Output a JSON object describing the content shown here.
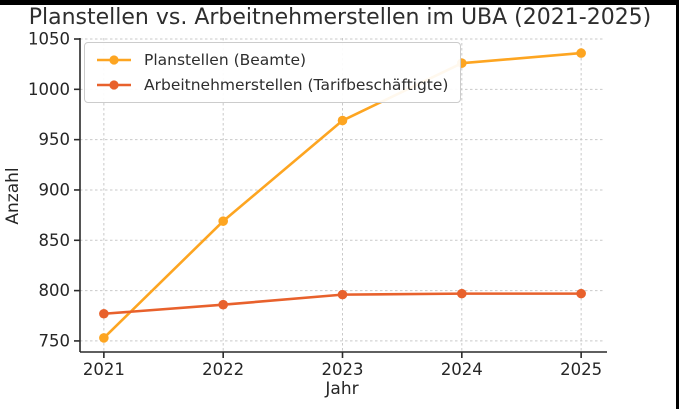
{
  "figure": {
    "background": "#ffffff",
    "letterbox_color": "#000000"
  },
  "chart_data": {
    "type": "line",
    "title": "Planstellen vs. Arbeitnehmerstellen im UBA (2021-2025)",
    "xlabel": "Jahr",
    "ylabel": "Anzahl",
    "x": [
      2021,
      2022,
      2023,
      2024,
      2025
    ],
    "xticks": [
      2021,
      2022,
      2023,
      2024,
      2025
    ],
    "yticks": [
      750,
      800,
      850,
      900,
      950,
      1000,
      1050
    ],
    "xlim": [
      2020.8,
      2025.2
    ],
    "ylim": [
      739,
      1051
    ],
    "grid": true,
    "grid_style": "dashed",
    "legend_position": "upper left",
    "series": [
      {
        "name": "Planstellen (Beamte)",
        "color": "#FDA521",
        "marker": "circle",
        "values": [
          753,
          869,
          969,
          1026,
          1036
        ]
      },
      {
        "name": "Arbeitnehmerstellen (Tarifbeschäftigte)",
        "color": "#E8612C",
        "marker": "circle",
        "values": [
          777,
          786,
          796,
          797,
          797
        ]
      }
    ],
    "colors": {
      "text": "#262626",
      "grid": "#c9c9c9",
      "spine": "#2a2a2a"
    }
  }
}
